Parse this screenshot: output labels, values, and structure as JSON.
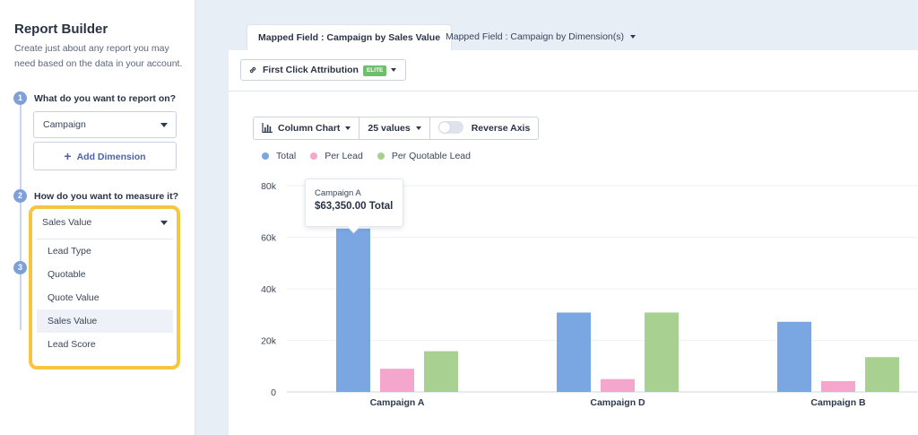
{
  "sidebar": {
    "title": "Report Builder",
    "description": "Create just about any report you may need based on the data in your account.",
    "step1": {
      "number": "1",
      "question": "What do you want to report on?",
      "selected": "Campaign",
      "add_dimension": "Add Dimension"
    },
    "step2": {
      "number": "2",
      "question": "How do you want to measure it?",
      "selected": "Sales Value"
    },
    "step3": {
      "number": "3"
    },
    "measure_options": [
      "Lead Type",
      "Quotable",
      "Quote Value",
      "Sales Value",
      "Lead Score"
    ]
  },
  "tabs": {
    "active": "Mapped Field : Campaign by Sales Value",
    "other": "Mapped Field : Campaign by Dimension(s)"
  },
  "toolbar": {
    "attribution": "First Click Attribution",
    "badge": "ELITE"
  },
  "controls": {
    "chart_type": "Column Chart",
    "values": "25 values",
    "reverse_axis": "Reverse Axis"
  },
  "tooltip": {
    "name": "Campaign A",
    "value": "$63,350.00 Total"
  },
  "colors": {
    "total": "#7aa7e2",
    "per_lead": "#f4a6cc",
    "per_quotable": "#a8d191",
    "accent": "#f7c640"
  },
  "chart_data": {
    "type": "bar",
    "categories": [
      "Campaign A",
      "Campaign D",
      "Campaign B"
    ],
    "series": [
      {
        "name": "Total",
        "values": [
          63350,
          30800,
          27200
        ]
      },
      {
        "name": "Per Lead",
        "values": [
          9000,
          5000,
          4200
        ]
      },
      {
        "name": "Per Quotable Lead",
        "values": [
          15800,
          30800,
          13500
        ]
      }
    ],
    "y_ticks": [
      "0",
      "20k",
      "40k",
      "60k",
      "80k"
    ],
    "ylim": [
      0,
      80000
    ],
    "grid": true,
    "legend": "top-left"
  }
}
